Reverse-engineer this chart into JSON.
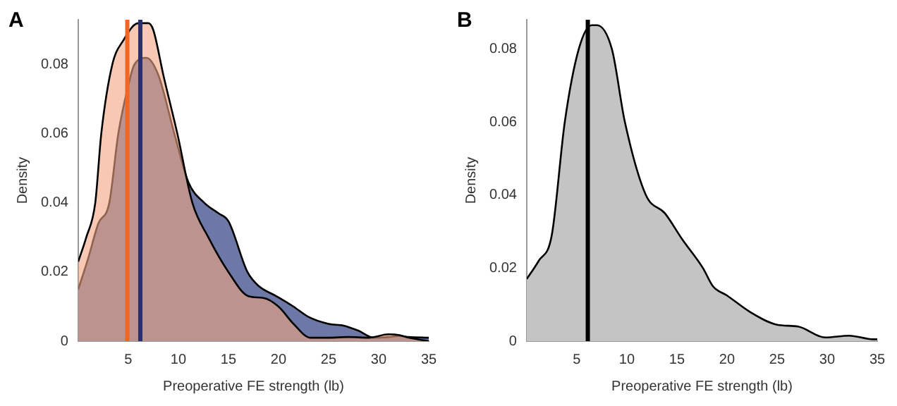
{
  "chart_data": [
    {
      "type": "area",
      "title": "A",
      "xlabel": "Preoperative FE strength (lb)",
      "ylabel": "Density",
      "xlim": [
        0,
        35
      ],
      "ylim": [
        0,
        0.093
      ],
      "xticks": [
        5,
        10,
        15,
        20,
        25,
        30,
        35
      ],
      "yticks": [
        0,
        0.02,
        0.04,
        0.06,
        0.08
      ],
      "grid": false,
      "legend": false,
      "series": [
        {
          "color": "#6e78a6",
          "x": [
            0,
            1,
            2,
            3.1,
            4,
            5,
            5.6,
            6.8,
            8,
            9.6,
            11,
            12.6,
            14,
            15,
            16.9,
            18,
            19.8,
            21.5,
            23,
            25,
            26.5,
            28,
            29.5,
            31,
            32,
            33,
            35
          ],
          "values": [
            0.015,
            0.024,
            0.034,
            0.04,
            0.06,
            0.074,
            0.08,
            0.082,
            0.077,
            0.06,
            0.046,
            0.04,
            0.037,
            0.0347,
            0.02,
            0.016,
            0.013,
            0.01,
            0.007,
            0.005,
            0.0045,
            0.003,
            0.001,
            0.0012,
            0.0015,
            0.0012,
            0.001
          ]
        },
        {
          "color": "#f2a582",
          "x": [
            0,
            0.8,
            1.7,
            2.3,
            3.4,
            4.5,
            6,
            7,
            7.5,
            8.5,
            9.9,
            11.4,
            13,
            15,
            17,
            18.5,
            20,
            21.5,
            23.2,
            25,
            27,
            29,
            31,
            32,
            33,
            35
          ],
          "values": [
            0.023,
            0.03,
            0.04,
            0.06,
            0.08,
            0.087,
            0.092,
            0.092,
            0.09,
            0.077,
            0.06,
            0.04,
            0.03,
            0.02,
            0.013,
            0.0125,
            0.01,
            0.005,
            0.001,
            0.001,
            0.0012,
            0.001,
            0.002,
            0.0018,
            0.001,
            0
          ]
        }
      ],
      "ref_lines": [
        {
          "axis": "x",
          "value": 4.9,
          "color": "#f26522"
        },
        {
          "axis": "x",
          "value": 6.2,
          "color": "#2b2f6e"
        }
      ]
    },
    {
      "type": "area",
      "title": "B",
      "xlabel": "Preoperative FE strength (lb)",
      "ylabel": "Density",
      "xlim": [
        0,
        35
      ],
      "ylim": [
        0,
        0.088
      ],
      "xticks": [
        5,
        10,
        15,
        20,
        25,
        30,
        35
      ],
      "yticks": [
        0,
        0.02,
        0.04,
        0.06,
        0.08
      ],
      "grid": false,
      "legend": false,
      "series": [
        {
          "color": "#c4c4c4",
          "x": [
            0,
            1.2,
            2.5,
            3.8,
            5.2,
            6.5,
            7,
            8.5,
            9.8,
            11.9,
            13.8,
            15.5,
            17.6,
            18.6,
            20,
            22.3,
            25,
            27.1,
            29.8,
            32.2,
            34.6,
            35
          ],
          "values": [
            0.017,
            0.022,
            0.029,
            0.06,
            0.08,
            0.0865,
            0.0865,
            0.08,
            0.06,
            0.04,
            0.035,
            0.028,
            0.02,
            0.015,
            0.0125,
            0.008,
            0.0045,
            0.004,
            0.001,
            0.0015,
            0.0005,
            0.0005
          ]
        }
      ],
      "ref_lines": [
        {
          "axis": "x",
          "value": 6.1,
          "color": "#000000"
        }
      ]
    }
  ]
}
